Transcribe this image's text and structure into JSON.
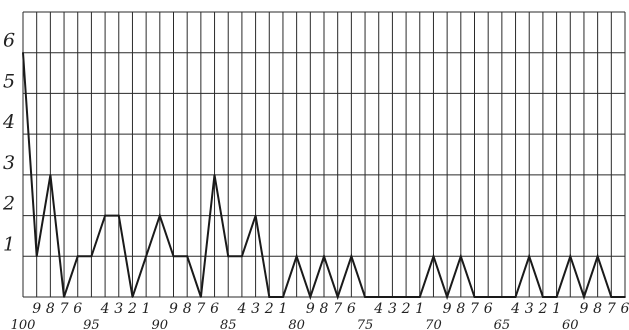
{
  "chart_data": {
    "type": "line",
    "title": "",
    "xlabel": "",
    "ylabel": "",
    "x_direction": "descending",
    "xlim": [
      100,
      56
    ],
    "ylim": [
      0,
      7
    ],
    "grid": true,
    "legend": "none",
    "colors": {
      "line": "#1a1a1a",
      "grid": "#2a2a2a",
      "background": "#ffffff"
    },
    "y_tick_labels": [
      "1",
      "2",
      "3",
      "4",
      "5",
      "6"
    ],
    "x_tick_labels": [
      "100",
      "9",
      "8",
      "7",
      "6",
      "95",
      "4",
      "3",
      "2",
      "1",
      "90",
      "9",
      "8",
      "7",
      "6",
      "85",
      "4",
      "3",
      "2",
      "1",
      "80",
      "9",
      "8",
      "7",
      "6",
      "75",
      "4",
      "3",
      "2",
      "1",
      "70",
      "9",
      "8",
      "7",
      "6",
      "65",
      "4",
      "3",
      "2",
      "1",
      "60",
      "9",
      "8",
      "7",
      "6"
    ],
    "series": [
      {
        "x": [
          100,
          99,
          98,
          97,
          96,
          95,
          94,
          93,
          92,
          91,
          90,
          89,
          88,
          87,
          86,
          85,
          84,
          83,
          82,
          81,
          80,
          79,
          78,
          77,
          76,
          75,
          74,
          73,
          72,
          71,
          70,
          69,
          68,
          67,
          66,
          65,
          64,
          63,
          62,
          61,
          60,
          59,
          58,
          57,
          56
        ],
        "values": [
          6,
          1,
          3,
          0,
          1,
          1,
          2,
          2,
          0,
          1,
          2,
          1,
          1,
          0,
          3,
          1,
          1,
          2,
          0,
          0,
          1,
          0,
          1,
          0,
          1,
          0,
          0,
          0,
          0,
          0,
          1,
          0,
          1,
          0,
          0,
          0,
          0,
          1,
          0,
          0,
          1,
          0,
          1,
          0,
          0
        ]
      }
    ]
  }
}
